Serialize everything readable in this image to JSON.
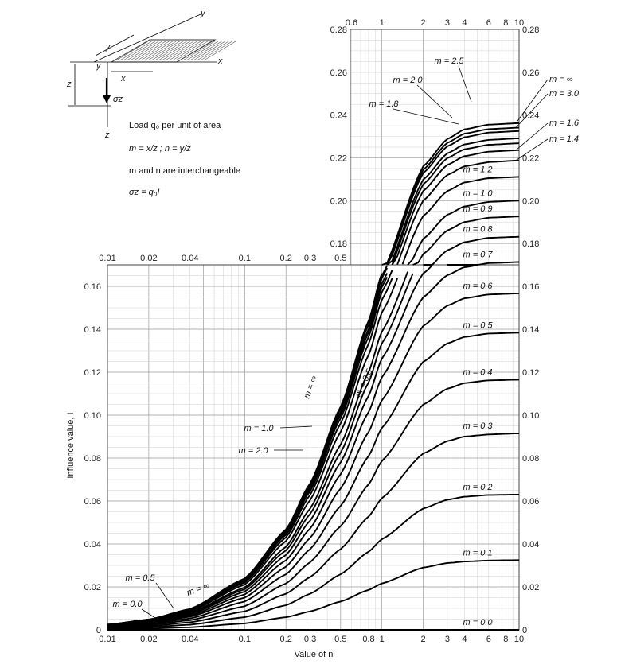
{
  "chart_data": {
    "type": "line",
    "title": "",
    "xlabel": "Value of n",
    "ylabel": "Influence value, I",
    "x_scale": "log",
    "main_xlim": [
      0.01,
      10
    ],
    "main_ylim": [
      0,
      0.17
    ],
    "inset_xlim": [
      0.5,
      10
    ],
    "inset_ylim": [
      0.17,
      0.28
    ],
    "grid": true,
    "main_yticks": [
      "0",
      "0.02",
      "0.04",
      "0.06",
      "0.08",
      "0.10",
      "0.12",
      "0.14",
      "0.16"
    ],
    "inset_yticks": [
      "0.18",
      "0.20",
      "0.22",
      "0.24",
      "0.26",
      "0.28"
    ],
    "main_xticks_bottom": [
      "0.01",
      "0.02",
      "0.04",
      "0.1",
      "0.2",
      "0.3",
      "0.5",
      "0.8",
      "1",
      "2",
      "3",
      "4",
      "6",
      "8",
      "10"
    ],
    "main_xticks_top": [
      "0.01",
      "0.02",
      "0.04",
      "0.1",
      "0.2",
      "0.3",
      "0.5"
    ],
    "inset_xticks_top": [
      "0.6",
      "1",
      "2",
      "3",
      "4",
      "6",
      "8",
      "10"
    ],
    "series": [
      {
        "name": "m = 0.0",
        "values": [
          0,
          0,
          0,
          0,
          0,
          0,
          0,
          0,
          0,
          0,
          0,
          0,
          0,
          0
        ]
      },
      {
        "name": "m = 0.1",
        "values": [
          0.0003,
          0.0006,
          0.0012,
          0.003,
          0.0059,
          0.0086,
          0.0132,
          0.0186,
          0.0216,
          0.029,
          0.0311,
          0.0318,
          0.0323,
          0.0325
        ]
      },
      {
        "name": "m = 0.2",
        "values": [
          0.0006,
          0.0012,
          0.0024,
          0.0059,
          0.0115,
          0.0168,
          0.0259,
          0.0364,
          0.0422,
          0.0565,
          0.0606,
          0.062,
          0.0628,
          0.063
        ]
      },
      {
        "name": "m = 0.3",
        "values": [
          0.0009,
          0.0017,
          0.0035,
          0.0086,
          0.0168,
          0.0246,
          0.0376,
          0.0528,
          0.0613,
          0.0821,
          0.0879,
          0.09,
          0.091,
          0.0915
        ]
      },
      {
        "name": "m = 0.4",
        "values": [
          0.0011,
          0.0022,
          0.0045,
          0.011,
          0.0216,
          0.0315,
          0.0483,
          0.0678,
          0.0786,
          0.1049,
          0.1123,
          0.1149,
          0.1162,
          0.1165
        ]
      },
      {
        "name": "m = 0.5",
        "values": [
          0.0013,
          0.0027,
          0.0053,
          0.0132,
          0.0259,
          0.0376,
          0.0577,
          0.081,
          0.094,
          0.1248,
          0.1334,
          0.1364,
          0.138,
          0.1384
        ]
      },
      {
        "name": "m = 0.6",
        "values": [
          0.0015,
          0.003,
          0.0061,
          0.015,
          0.0294,
          0.0428,
          0.0658,
          0.0922,
          0.1069,
          0.1415,
          0.151,
          0.1544,
          0.1562,
          0.1567
        ]
      },
      {
        "name": "m = 0.7",
        "values": [
          0.0017,
          0.0034,
          0.0067,
          0.0165,
          0.0324,
          0.0472,
          0.0725,
          0.1015,
          0.1176,
          0.1549,
          0.1652,
          0.1689,
          0.1708,
          0.1713
        ]
      },
      {
        "name": "m = 0.8",
        "values": [
          0.0018,
          0.0036,
          0.0073,
          0.0178,
          0.0349,
          0.0509,
          0.078,
          0.109,
          0.1263,
          0.166,
          0.1768,
          0.1806,
          0.1826,
          0.1831
        ]
      },
      {
        "name": "m = 0.9",
        "values": [
          0.0019,
          0.0039,
          0.0077,
          0.0189,
          0.037,
          0.054,
          0.0825,
          0.1153,
          0.1334,
          0.175,
          0.1861,
          0.19,
          0.192,
          0.1926
        ]
      },
      {
        "name": "m = 1.0",
        "values": [
          0.002,
          0.004,
          0.008,
          0.0197,
          0.0387,
          0.0565,
          0.0863,
          0.1202,
          0.1389,
          0.1821,
          0.1934,
          0.1973,
          0.1994,
          0.2
        ]
      },
      {
        "name": "m = 1.2",
        "values": [
          0.0022,
          0.0043,
          0.0086,
          0.0211,
          0.0414,
          0.0604,
          0.0922,
          0.1281,
          0.1478,
          0.1928,
          0.2045,
          0.2085,
          0.2105,
          0.2111
        ]
      },
      {
        "name": "m = 1.4",
        "values": [
          0.0022,
          0.0045,
          0.0089,
          0.022,
          0.0431,
          0.0629,
          0.0961,
          0.1333,
          0.1537,
          0.2,
          0.212,
          0.216,
          0.218,
          0.2188
        ]
      },
      {
        "name": "m = 1.6",
        "values": [
          0.0023,
          0.0046,
          0.0092,
          0.0227,
          0.0443,
          0.0646,
          0.0985,
          0.1365,
          0.1573,
          0.2045,
          0.2167,
          0.2208,
          0.2229,
          0.2236
        ]
      },
      {
        "name": "m = 1.8",
        "values": [
          0.0023,
          0.0047,
          0.0093,
          0.023,
          0.045,
          0.0656,
          0.1001,
          0.1386,
          0.1597,
          0.2076,
          0.2199,
          0.224,
          0.2261,
          0.2268
        ]
      },
      {
        "name": "m = 2.0",
        "values": [
          0.0024,
          0.0047,
          0.0094,
          0.0233,
          0.0455,
          0.0664,
          0.1012,
          0.1401,
          0.1614,
          0.2098,
          0.2221,
          0.2263,
          0.2284,
          0.2291
        ]
      },
      {
        "name": "m = 2.5",
        "values": [
          0.0024,
          0.0048,
          0.0096,
          0.0236,
          0.0462,
          0.0674,
          0.1027,
          0.1422,
          0.1638,
          0.2129,
          0.2254,
          0.2296,
          0.2318,
          0.2325
        ]
      },
      {
        "name": "m = 3.0",
        "values": [
          0.0024,
          0.0048,
          0.0096,
          0.0238,
          0.0465,
          0.0678,
          0.1033,
          0.1431,
          0.1649,
          0.2144,
          0.227,
          0.2313,
          0.2334,
          0.2341
        ]
      },
      {
        "name": "m = ∞",
        "values": [
          0.0024,
          0.0048,
          0.0097,
          0.0239,
          0.0468,
          0.0682,
          0.1039,
          0.144,
          0.166,
          0.216,
          0.2288,
          0.2333,
          0.2355,
          0.2362
        ]
      }
    ],
    "x": [
      0.01,
      0.02,
      0.04,
      0.1,
      0.2,
      0.3,
      0.5,
      0.8,
      1,
      2,
      3,
      4,
      6,
      10
    ],
    "annotations": {
      "inline_labels": [
        "m = ∞",
        "m = 0.5"
      ],
      "left_labels": [
        "m = 1.0",
        "m = 2.0"
      ],
      "lower_left_labels": [
        "m = 0.5",
        "m = 0.0",
        "m = ∞"
      ]
    }
  },
  "diagram": {
    "axis_x": "x",
    "axis_y": "y",
    "axis_y2": "y",
    "axis_z": "z",
    "axis_z2": "z",
    "dim_x": "x",
    "dim_y": "y",
    "dim_z": "z",
    "stress": "σz",
    "notes": [
      "Load q₀ per unit of area",
      "m = x/z ; n = y/z",
      "m and n are interchangeable",
      "σz = q₀I"
    ]
  },
  "colors": {
    "curves": "#000000",
    "grid": "#9a9a9a",
    "hatch": "#555555"
  }
}
